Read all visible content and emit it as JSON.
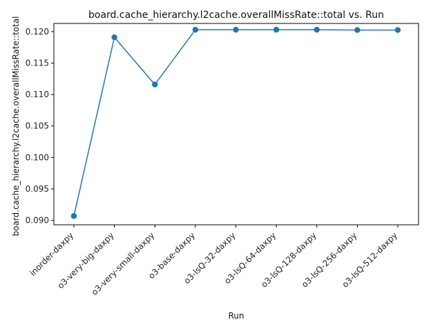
{
  "chart_data": {
    "type": "line",
    "title": "board.cache_hierarchy.l2cache.overallMissRate::total vs. Run",
    "xlabel": "Run",
    "ylabel": "board.cache_hierarchy.l2cache.overallMissRate::total",
    "categories": [
      "inorder-daxpy",
      "o3-very-big-daxpy",
      "o3-very-small-daxpy",
      "o3-base-daxpy",
      "o3-lsQ-32-daxpy",
      "o3-lsQ-64-daxpy",
      "o3-lsQ-128-daxpy",
      "o3-lsQ-256-daxpy",
      "o3-lsQ-512-daxpy"
    ],
    "values": [
      0.0907,
      0.1191,
      0.1116,
      0.1203,
      0.1203,
      0.1203,
      0.1203,
      0.12025,
      0.12025
    ],
    "ylim": [
      0.0893,
      0.1213
    ],
    "yticks": [
      "0.090",
      "0.095",
      "0.100",
      "0.105",
      "0.110",
      "0.115",
      "0.120"
    ],
    "ytick_values": [
      0.09,
      0.095,
      0.1,
      0.105,
      0.11,
      0.115,
      0.12
    ],
    "marker": "circle",
    "grid": false,
    "colors": {
      "series": "#1f77b4"
    }
  }
}
